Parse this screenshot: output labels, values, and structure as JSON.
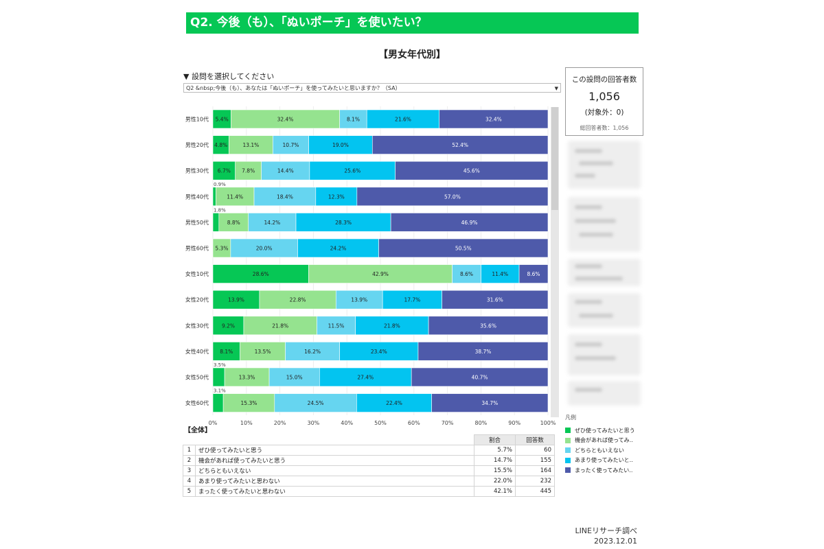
{
  "header": {
    "title": "Q2. 今後（も）、「ぬいポーチ」を使いたい？"
  },
  "subtitle": "【男女年代別】",
  "question_select": {
    "label": "▼ 設問を選択してください",
    "value": "Q2 &nbsp;今後（も）、あなたは「ぬいポーチ」を使ってみたいと思いますか？（SA）"
  },
  "respondents": {
    "title": "この設問の回答者数",
    "count": "1,056",
    "excluded": "(対象外：0)",
    "total": "総回答者数：1,056"
  },
  "legend": {
    "title": "凡例",
    "items": [
      "ぜひ使ってみたいと思う",
      "機会があれば使ってみ..",
      "どちらともいえない",
      "あまり使ってみたいと..",
      "まったく使ってみたい.."
    ]
  },
  "colors": [
    "#06c755",
    "#95e38f",
    "#66d5f0",
    "#03c4f0",
    "#4e5aaa"
  ],
  "chart_data": {
    "type": "bar",
    "orientation": "horizontal-stacked-100",
    "categories": [
      "男性10代",
      "男性20代",
      "男性30代",
      "男性40代",
      "男性50代",
      "男性60代",
      "女性10代",
      "女性20代",
      "女性30代",
      "女性40代",
      "女性50代",
      "女性60代"
    ],
    "series": [
      {
        "name": "ぜひ使ってみたいと思う",
        "values": [
          5.4,
          4.8,
          6.7,
          0.9,
          1.8,
          0.0,
          28.6,
          13.9,
          9.2,
          8.1,
          3.5,
          3.1
        ]
      },
      {
        "name": "機会があれば使ってみたいと思う",
        "values": [
          32.4,
          13.1,
          7.8,
          11.4,
          8.8,
          5.3,
          42.9,
          22.8,
          21.8,
          13.5,
          13.3,
          15.3
        ]
      },
      {
        "name": "どちらともいえない",
        "values": [
          8.1,
          10.7,
          14.4,
          18.4,
          14.2,
          20.0,
          8.6,
          13.9,
          11.5,
          16.2,
          15.0,
          24.5
        ]
      },
      {
        "name": "あまり使ってみたいと思わない",
        "values": [
          21.6,
          19.0,
          25.6,
          12.3,
          28.3,
          24.2,
          11.4,
          17.7,
          21.8,
          23.4,
          27.4,
          22.4
        ]
      },
      {
        "name": "まったく使ってみたいと思わない",
        "values": [
          32.4,
          52.4,
          45.6,
          57.0,
          46.9,
          50.5,
          8.6,
          31.6,
          35.6,
          38.7,
          40.7,
          34.7
        ]
      }
    ],
    "x_ticks": [
      "0%",
      "10%",
      "20%",
      "30%",
      "40%",
      "50%",
      "60%",
      "70%",
      "80%",
      "90%",
      "100%"
    ],
    "xlim": [
      0,
      100
    ]
  },
  "summary": {
    "title": "【全体】",
    "headers": [
      "割合",
      "回答数"
    ],
    "rows": [
      {
        "idx": "1",
        "label": "ぜひ使ってみたいと思う",
        "pct": "5.7%",
        "n": "60"
      },
      {
        "idx": "2",
        "label": "機会があれば使ってみたいと思う",
        "pct": "14.7%",
        "n": "155"
      },
      {
        "idx": "3",
        "label": "どちらともいえない",
        "pct": "15.5%",
        "n": "164"
      },
      {
        "idx": "4",
        "label": "あまり使ってみたいと思わない",
        "pct": "22.0%",
        "n": "232"
      },
      {
        "idx": "5",
        "label": "まったく使ってみたいと思わない",
        "pct": "42.1%",
        "n": "445"
      }
    ]
  },
  "footer": {
    "source": "LINEリサーチ調べ",
    "date": "2023.12.01"
  }
}
